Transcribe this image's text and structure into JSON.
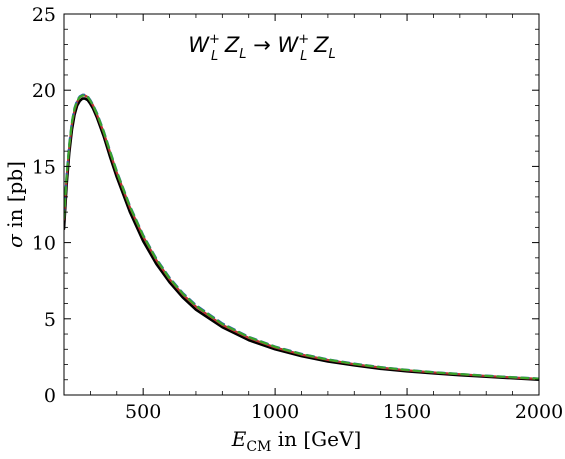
{
  "chart_data": {
    "type": "line",
    "title": {
      "parts": [
        {
          "text": "W",
          "italic": true
        },
        {
          "sup": "+",
          "sub": "L"
        },
        {
          "text": " Z",
          "italic": true
        },
        {
          "sub": "L"
        },
        {
          "text": " → ",
          "italic": false
        },
        {
          "text": "W",
          "italic": true
        },
        {
          "sup": "+",
          "sub": "L"
        },
        {
          "text": " Z",
          "italic": true
        },
        {
          "sub": "L"
        }
      ]
    },
    "xlabel": {
      "main": "E",
      "sub": "CM",
      "rest": " in [GeV]"
    },
    "ylabel": {
      "main": "σ",
      "rest": " in [pb]"
    },
    "xlim": [
      200,
      2000
    ],
    "ylim": [
      0,
      25
    ],
    "xticks": [
      500,
      1000,
      1500,
      2000
    ],
    "yticks": [
      0,
      5,
      10,
      15,
      20,
      25
    ],
    "grid": false,
    "frame": true,
    "series": [
      {
        "color": "#000000",
        "dash": "solid",
        "x": [
          200,
          210,
          220,
          230,
          240,
          250,
          260,
          270,
          280,
          290,
          300,
          310,
          325,
          350,
          375,
          400,
          450,
          500,
          550,
          600,
          650,
          700,
          800,
          900,
          1000,
          1100,
          1200,
          1300,
          1400,
          1500,
          1600,
          1700,
          1800,
          1900,
          2000
        ],
        "y": [
          10.9,
          13.8,
          15.9,
          17.4,
          18.4,
          19.0,
          19.3,
          19.45,
          19.45,
          19.35,
          19.1,
          18.8,
          18.2,
          17.0,
          15.6,
          14.3,
          12.0,
          10.1,
          8.6,
          7.4,
          6.4,
          5.6,
          4.45,
          3.6,
          3.0,
          2.55,
          2.2,
          1.95,
          1.72,
          1.55,
          1.42,
          1.3,
          1.2,
          1.1,
          1.0
        ]
      },
      {
        "color": "#c03030",
        "dash": "solid",
        "x": [
          200,
          210,
          220,
          230,
          240,
          250,
          260,
          270,
          280,
          290,
          300,
          310,
          325,
          350,
          375,
          400,
          450,
          500,
          550,
          600,
          650,
          700,
          800,
          900,
          1000,
          1100,
          1200,
          1300,
          1400,
          1500,
          1600,
          1700,
          1800,
          1900,
          2000
        ],
        "y": [
          11.5,
          14.3,
          16.3,
          17.8,
          18.7,
          19.25,
          19.55,
          19.65,
          19.65,
          19.55,
          19.3,
          19.0,
          18.4,
          17.25,
          15.9,
          14.6,
          12.3,
          10.4,
          8.85,
          7.6,
          6.6,
          5.8,
          4.6,
          3.75,
          3.12,
          2.65,
          2.3,
          2.02,
          1.8,
          1.62,
          1.48,
          1.36,
          1.25,
          1.15,
          1.06
        ]
      },
      {
        "color": "#2a5fb0",
        "dash": "dashed",
        "x": [
          200,
          210,
          220,
          230,
          240,
          250,
          260,
          270,
          280,
          290,
          300,
          310,
          325,
          350,
          375,
          400,
          450,
          500,
          550,
          600,
          650,
          700,
          800,
          900,
          1000,
          1100,
          1200,
          1300,
          1400,
          1500,
          1600,
          1700,
          1800,
          1900,
          2000
        ],
        "y": [
          11.7,
          14.5,
          16.5,
          17.95,
          18.85,
          19.35,
          19.6,
          19.7,
          19.7,
          19.6,
          19.35,
          19.05,
          18.5,
          17.35,
          16.0,
          14.7,
          12.4,
          10.5,
          8.95,
          7.7,
          6.7,
          5.9,
          4.7,
          3.82,
          3.18,
          2.7,
          2.34,
          2.06,
          1.83,
          1.65,
          1.5,
          1.38,
          1.27,
          1.17,
          1.08
        ]
      },
      {
        "color": "#3aa62a",
        "dash": "dashed",
        "x": [
          200,
          210,
          220,
          230,
          240,
          250,
          260,
          270,
          280,
          290,
          300,
          310,
          325,
          350,
          375,
          400,
          450,
          500,
          550,
          600,
          650,
          700,
          800,
          900,
          1000,
          1100,
          1200,
          1300,
          1400,
          1500,
          1600,
          1700,
          1800,
          1900,
          2000
        ],
        "y": [
          11.6,
          14.4,
          16.4,
          17.9,
          18.8,
          19.3,
          19.55,
          19.65,
          19.65,
          19.55,
          19.3,
          19.0,
          18.45,
          17.3,
          15.95,
          14.65,
          12.35,
          10.45,
          8.9,
          7.65,
          6.65,
          5.85,
          4.65,
          3.8,
          3.16,
          2.68,
          2.32,
          2.04,
          1.82,
          1.64,
          1.49,
          1.37,
          1.26,
          1.16,
          1.07
        ]
      }
    ]
  }
}
